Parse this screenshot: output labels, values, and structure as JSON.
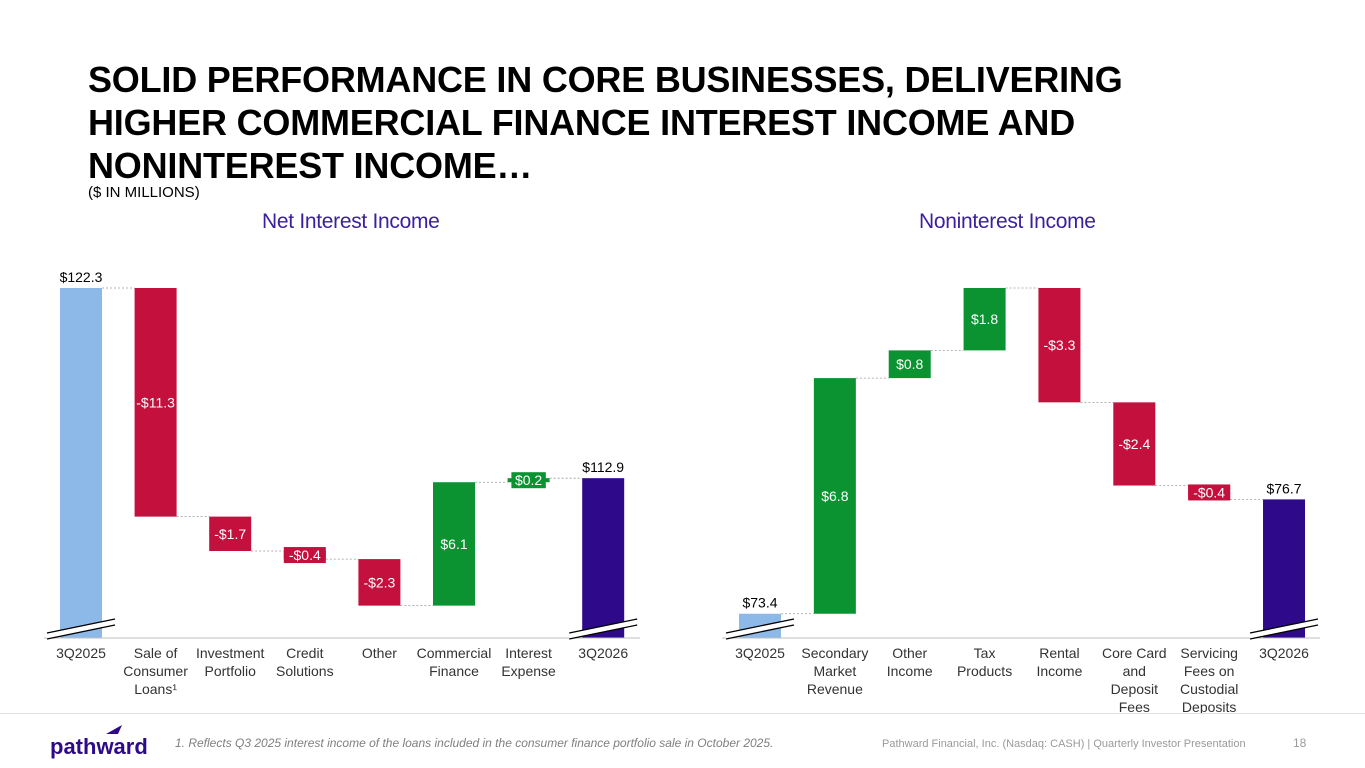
{
  "header": {
    "title_lines": [
      "SOLID PERFORMANCE IN CORE BUSINESSES, DELIVERING",
      "HIGHER COMMERCIAL FINANCE INTEREST INCOME AND",
      "NONINTEREST INCOME…"
    ],
    "subtitle": "($ IN MILLIONS)"
  },
  "colors": {
    "start": "#8db9e8",
    "end": "#2e0a8a",
    "decrease": "#c4103d",
    "increase": "#0a9330",
    "title": "#3a1f9e"
  },
  "chart_data": [
    {
      "type": "waterfall",
      "title": "Net Interest Income",
      "categories": [
        "3Q2025",
        "Sale of Consumer Loans¹",
        "Investment Portfolio",
        "Credit Solutions",
        "Other",
        "Commercial Finance",
        "Interest Expense",
        "3Q2026"
      ],
      "values": [
        122.3,
        -11.3,
        -1.7,
        -0.4,
        -2.3,
        6.1,
        0.2,
        112.9
      ],
      "kinds": [
        "total",
        "delta",
        "delta",
        "delta",
        "delta",
        "delta",
        "delta",
        "total"
      ],
      "labels": [
        "$122.3",
        "-$11.3",
        "-$1.7",
        "-$0.4",
        "-$2.3",
        "$6.1",
        "$0.2",
        "$112.9"
      ],
      "axis_break": true,
      "ylim": [
        105.0,
        122.3
      ]
    },
    {
      "type": "waterfall",
      "title": "Noninterest Income",
      "categories": [
        "3Q2025",
        "Secondary Market Revenue",
        "Other Income",
        "Tax Products",
        "Rental Income",
        "Core Card and Deposit Fees",
        "Servicing Fees on Custodial Deposits",
        "3Q2026"
      ],
      "values": [
        73.4,
        6.8,
        0.8,
        1.8,
        -3.3,
        -2.4,
        -0.4,
        76.7
      ],
      "kinds": [
        "total",
        "delta",
        "delta",
        "delta",
        "delta",
        "delta",
        "delta",
        "total"
      ],
      "labels": [
        "$73.4",
        "$6.8",
        "$0.8",
        "$1.8",
        "-$3.3",
        "-$2.4",
        "-$0.4",
        "$76.7"
      ],
      "axis_break": true,
      "ylim": [
        72.7,
        82.8
      ]
    }
  ],
  "footer": {
    "logo_text": "pathward",
    "footnote": "1. Reflects Q3 2025 interest income of the loans included in the consumer finance portfolio sale in October 2025.",
    "source": "Pathward Financial, Inc. (Nasdaq: CASH) | Quarterly Investor Presentation",
    "page_number": "18"
  }
}
